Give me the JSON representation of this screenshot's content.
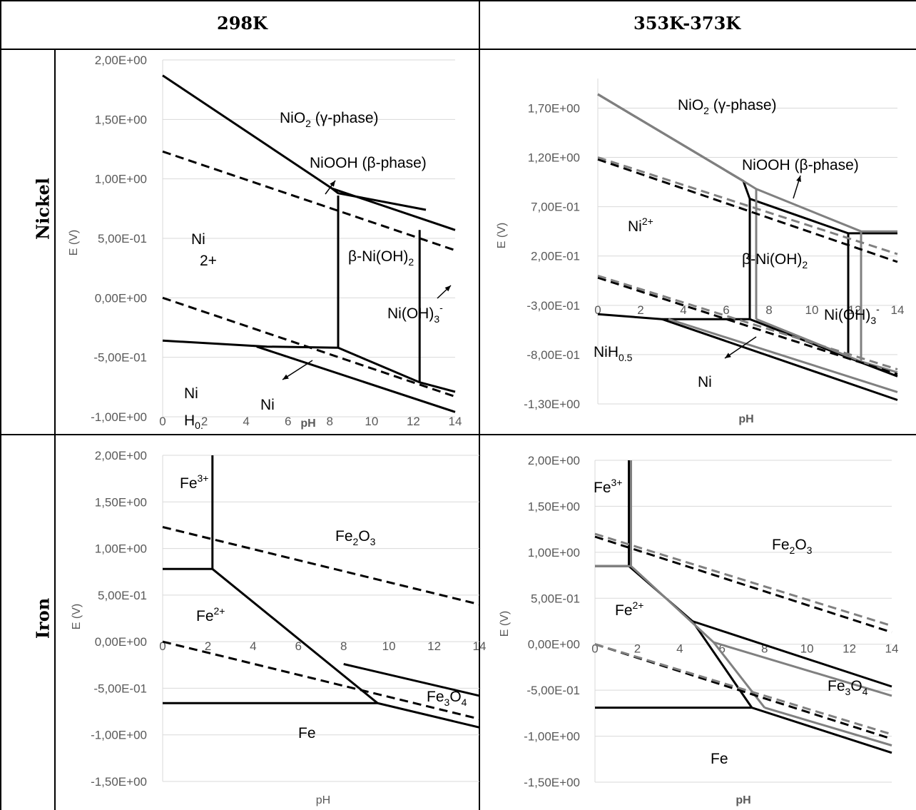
{
  "table": {
    "col_headers": [
      "298K",
      "353K-373K"
    ],
    "row_headers": [
      "Nickel",
      "Iron"
    ]
  },
  "chart_data": [
    {
      "type": "line",
      "panel": "nickel-298K",
      "xlabel": "pH",
      "ylabel": "E (V)",
      "xlim": [
        0,
        14
      ],
      "ylim": [
        -1.0,
        2.0
      ],
      "x_ticks": [
        "0",
        "2",
        "4",
        "6",
        "8",
        "10",
        "12",
        "14"
      ],
      "y_ticks": [
        "2,00E+00",
        "1,50E+00",
        "1,00E+00",
        "5,00E-01",
        "0,00E+00",
        "-5,00E-01",
        "-1,00E+00"
      ],
      "y_tick_values": [
        2.0,
        1.5,
        1.0,
        0.5,
        0.0,
        -0.5,
        -1.0
      ],
      "annotations": [
        "NiO2 (γ-phase)",
        "NiOOH (β-phase)",
        "Ni2+",
        "β-Ni(OH)2",
        "Ni(OH)3-",
        "NiH0.",
        "Ni"
      ],
      "series": [
        {
          "style": "solid",
          "color": "#000000",
          "points": [
            [
              0,
              1.87
            ],
            [
              8.1,
              0.92
            ],
            [
              8.4,
              0.88
            ],
            [
              12.6,
              0.74
            ]
          ]
        },
        {
          "style": "solid",
          "color": "#000000",
          "points": [
            [
              8.1,
              0.92
            ],
            [
              14,
              0.57
            ]
          ]
        },
        {
          "style": "solid",
          "color": "#000000",
          "points": [
            [
              8.4,
              0.86
            ],
            [
              8.4,
              -0.42
            ]
          ]
        },
        {
          "style": "solid",
          "color": "#000000",
          "points": [
            [
              12.3,
              0.57
            ],
            [
              12.3,
              -0.71
            ]
          ]
        },
        {
          "style": "solid",
          "color": "#000000",
          "points": [
            [
              0,
              -0.36
            ],
            [
              5.0,
              -0.41
            ],
            [
              8.4,
              -0.42
            ],
            [
              12.3,
              -0.71
            ],
            [
              14,
              -0.79
            ]
          ]
        },
        {
          "style": "solid",
          "color": "#000000",
          "points": [
            [
              4.5,
              -0.41
            ],
            [
              14,
              -0.96
            ]
          ]
        },
        {
          "style": "dashed",
          "color": "#000000",
          "points": [
            [
              0,
              1.23
            ],
            [
              14,
              0.4
            ]
          ]
        },
        {
          "style": "dashed",
          "color": "#000000",
          "points": [
            [
              0,
              0.0
            ],
            [
              14,
              -0.83
            ]
          ]
        }
      ]
    },
    {
      "type": "line",
      "panel": "nickel-353K-373K",
      "xlabel": "pH",
      "ylabel": "E (V)",
      "xlim": [
        0,
        14
      ],
      "ylim": [
        -1.3,
        2.0
      ],
      "x_ticks": [
        "0",
        "2",
        "4",
        "6",
        "8",
        "10",
        "12",
        "14"
      ],
      "y_ticks": [
        "1,70E+00",
        "1,20E+00",
        "7,00E-01",
        "2,00E-01",
        "-3,00E-01",
        "-8,00E-01",
        "-1,30E+00"
      ],
      "y_tick_values": [
        1.7,
        1.2,
        0.7,
        0.2,
        -0.3,
        -0.8,
        -1.3
      ],
      "annotations": [
        "NiO2 (γ-phase)",
        "NiOOH (β-phase)",
        "Ni2+",
        "β-Ni(OH)2",
        "Ni(OH)3-",
        "NiH0.5",
        "Ni"
      ],
      "series": [
        {
          "style": "solid",
          "color": "#000000",
          "points": [
            [
              0,
              1.84
            ],
            [
              6.8,
              0.96
            ],
            [
              7.1,
              0.78
            ],
            [
              11.7,
              0.43
            ],
            [
              14,
              0.43
            ]
          ]
        },
        {
          "style": "solid",
          "color": "#000000",
          "points": [
            [
              7.1,
              0.78
            ],
            [
              7.1,
              -0.44
            ]
          ]
        },
        {
          "style": "solid",
          "color": "#000000",
          "points": [
            [
              11.7,
              0.43
            ],
            [
              11.7,
              -0.83
            ]
          ]
        },
        {
          "style": "solid",
          "color": "#000000",
          "points": [
            [
              0,
              -0.39
            ],
            [
              3.0,
              -0.44
            ],
            [
              7.1,
              -0.44
            ],
            [
              11.7,
              -0.83
            ],
            [
              14,
              -1.02
            ]
          ]
        },
        {
          "style": "solid",
          "color": "#000000",
          "points": [
            [
              3.0,
              -0.44
            ],
            [
              14,
              -1.26
            ]
          ]
        },
        {
          "style": "solid",
          "color": "#808080",
          "points": [
            [
              0,
              1.84
            ],
            [
              6.5,
              1.0
            ],
            [
              7.4,
              0.88
            ],
            [
              12.3,
              0.45
            ],
            [
              14,
              0.45
            ]
          ]
        },
        {
          "style": "solid",
          "color": "#808080",
          "points": [
            [
              7.4,
              0.88
            ],
            [
              7.4,
              -0.44
            ]
          ]
        },
        {
          "style": "solid",
          "color": "#808080",
          "points": [
            [
              12.3,
              0.45
            ],
            [
              12.3,
              -0.87
            ]
          ]
        },
        {
          "style": "solid",
          "color": "#808080",
          "points": [
            [
              7.4,
              -0.44
            ],
            [
              12.3,
              -0.87
            ],
            [
              14,
              -0.98
            ]
          ]
        },
        {
          "style": "solid",
          "color": "#808080",
          "points": [
            [
              3.3,
              -0.44
            ],
            [
              14,
              -1.18
            ]
          ]
        },
        {
          "style": "dashed",
          "color": "#000000",
          "points": [
            [
              0,
              1.18
            ],
            [
              14,
              0.14
            ]
          ]
        },
        {
          "style": "dashed",
          "color": "#000000",
          "points": [
            [
              0,
              -0.02
            ],
            [
              14,
              -1.0
            ]
          ]
        },
        {
          "style": "dashed",
          "color": "#808080",
          "points": [
            [
              0,
              1.2
            ],
            [
              14,
              0.22
            ]
          ]
        },
        {
          "style": "dashed",
          "color": "#808080",
          "points": [
            [
              0,
              0.0
            ],
            [
              14,
              -0.95
            ]
          ]
        }
      ]
    },
    {
      "type": "line",
      "panel": "iron-298K",
      "xlabel": "pH",
      "ylabel": "E (V)",
      "xlim": [
        0,
        14
      ],
      "ylim": [
        -1.5,
        2.0
      ],
      "x_ticks": [
        "0",
        "2",
        "4",
        "6",
        "8",
        "10",
        "12",
        "14"
      ],
      "y_ticks": [
        "2,00E+00",
        "1,50E+00",
        "1,00E+00",
        "5,00E-01",
        "0,00E+00",
        "-5,00E-01",
        "-1,00E+00",
        "-1,50E+00"
      ],
      "y_tick_values": [
        2.0,
        1.5,
        1.0,
        0.5,
        0.0,
        -0.5,
        -1.0,
        -1.5
      ],
      "annotations": [
        "Fe3+",
        "Fe2O3",
        "Fe2+",
        "Fe3O4",
        "Fe"
      ],
      "series": [
        {
          "style": "solid",
          "color": "#000000",
          "points": [
            [
              2.2,
              2.0
            ],
            [
              2.2,
              0.78
            ]
          ]
        },
        {
          "style": "solid",
          "color": "#000000",
          "points": [
            [
              0,
              0.78
            ],
            [
              2.2,
              0.78
            ],
            [
              9.5,
              -0.66
            ]
          ]
        },
        {
          "style": "solid",
          "color": "#000000",
          "points": [
            [
              0,
              -0.66
            ],
            [
              9.5,
              -0.66
            ],
            [
              14,
              -0.92
            ]
          ]
        },
        {
          "style": "solid",
          "color": "#000000",
          "points": [
            [
              8.0,
              -0.24
            ],
            [
              14,
              -0.58
            ]
          ]
        },
        {
          "style": "dashed",
          "color": "#000000",
          "points": [
            [
              0,
              1.23
            ],
            [
              14,
              0.4
            ]
          ]
        },
        {
          "style": "dashed",
          "color": "#000000",
          "points": [
            [
              0,
              0.0
            ],
            [
              14,
              -0.83
            ]
          ]
        }
      ]
    },
    {
      "type": "line",
      "panel": "iron-353K-373K",
      "xlabel": "pH",
      "ylabel": "E (V)",
      "xlim": [
        0,
        14
      ],
      "ylim": [
        -1.5,
        2.0
      ],
      "x_ticks": [
        "0",
        "2",
        "4",
        "6",
        "8",
        "10",
        "12",
        "14"
      ],
      "y_ticks": [
        "2,00E+00",
        "1,50E+00",
        "1,00E+00",
        "5,00E-01",
        "0,00E+00",
        "-5,00E-01",
        "-1,00E+00",
        "-1,50E+00"
      ],
      "y_tick_values": [
        2.0,
        1.5,
        1.0,
        0.5,
        0.0,
        -0.5,
        -1.0,
        -1.5
      ],
      "annotations": [
        "Fe3+",
        "Fe2O3",
        "Fe2+",
        "Fe3O4",
        "Fe"
      ],
      "series": [
        {
          "style": "solid",
          "color": "#000000",
          "points": [
            [
              1.6,
              2.0
            ],
            [
              1.6,
              0.85
            ]
          ]
        },
        {
          "style": "solid",
          "color": "#000000",
          "points": [
            [
              0,
              0.85
            ],
            [
              1.6,
              0.85
            ],
            [
              4.6,
              0.25
            ],
            [
              7.4,
              -0.69
            ]
          ]
        },
        {
          "style": "solid",
          "color": "#000000",
          "points": [
            [
              4.6,
              0.25
            ],
            [
              14,
              -0.46
            ]
          ]
        },
        {
          "style": "solid",
          "color": "#000000",
          "points": [
            [
              0,
              -0.69
            ],
            [
              7.4,
              -0.69
            ],
            [
              14,
              -1.18
            ]
          ]
        },
        {
          "style": "solid",
          "color": "#808080",
          "points": [
            [
              1.7,
              2.0
            ],
            [
              1.7,
              0.85
            ]
          ]
        },
        {
          "style": "solid",
          "color": "#808080",
          "points": [
            [
              0,
              0.85
            ],
            [
              1.7,
              0.85
            ],
            [
              5.6,
              0.02
            ],
            [
              8.0,
              -0.69
            ]
          ]
        },
        {
          "style": "solid",
          "color": "#808080",
          "points": [
            [
              5.6,
              0.02
            ],
            [
              14,
              -0.56
            ]
          ]
        },
        {
          "style": "solid",
          "color": "#808080",
          "points": [
            [
              8.0,
              -0.69
            ],
            [
              14,
              -1.1
            ]
          ]
        },
        {
          "style": "dashed",
          "color": "#000000",
          "points": [
            [
              0,
              1.17
            ],
            [
              14,
              0.13
            ]
          ]
        },
        {
          "style": "dashed",
          "color": "#000000",
          "points": [
            [
              0,
              0.0
            ],
            [
              14,
              -1.03
            ]
          ]
        },
        {
          "style": "dashed",
          "color": "#808080",
          "points": [
            [
              0,
              1.2
            ],
            [
              14,
              0.2
            ]
          ]
        },
        {
          "style": "dashed",
          "color": "#808080",
          "points": [
            [
              0,
              0.0
            ],
            [
              14,
              -0.98
            ]
          ]
        }
      ]
    }
  ]
}
